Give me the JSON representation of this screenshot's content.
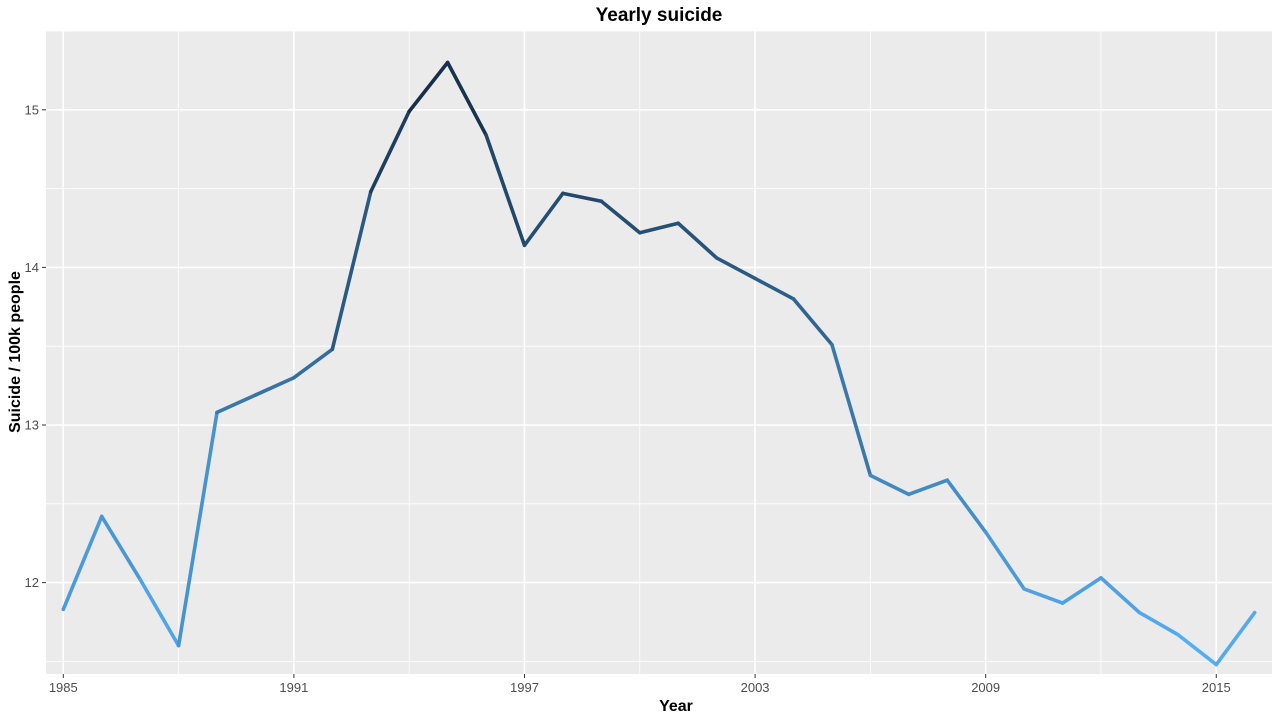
{
  "chart_data": {
    "type": "line",
    "title": "Yearly suicide",
    "xlabel": "Year",
    "ylabel": "Suicide / 100k people",
    "xlim": [
      1984.55,
      2016.45
    ],
    "ylim": [
      11.42,
      15.5
    ],
    "x_ticks": [
      1985,
      1991,
      1997,
      2003,
      2009,
      2015
    ],
    "y_ticks": [
      12,
      13,
      14,
      15
    ],
    "grid": true,
    "legend": "none",
    "series": [
      {
        "x": [
          1985,
          1986,
          1987,
          1988,
          1989,
          1990,
          1991,
          1992,
          1993,
          1994,
          1995,
          1996,
          1997,
          1998,
          1999,
          2000,
          2001,
          2002,
          2003,
          2004,
          2005,
          2006,
          2007,
          2008,
          2009,
          2010,
          2011,
          2012,
          2013,
          2014,
          2015,
          2016
        ],
        "values": [
          11.83,
          12.42,
          12.02,
          11.6,
          13.08,
          13.19,
          13.3,
          13.48,
          14.48,
          14.99,
          15.3,
          14.84,
          14.14,
          14.47,
          14.42,
          14.22,
          14.28,
          14.06,
          13.93,
          13.8,
          13.51,
          12.68,
          12.56,
          12.65,
          12.32,
          11.96,
          11.87,
          12.03,
          11.81,
          11.67,
          11.48,
          11.81
        ],
        "color_scale": {
          "low": "#56B1F7",
          "high": "#132B43"
        }
      }
    ]
  }
}
